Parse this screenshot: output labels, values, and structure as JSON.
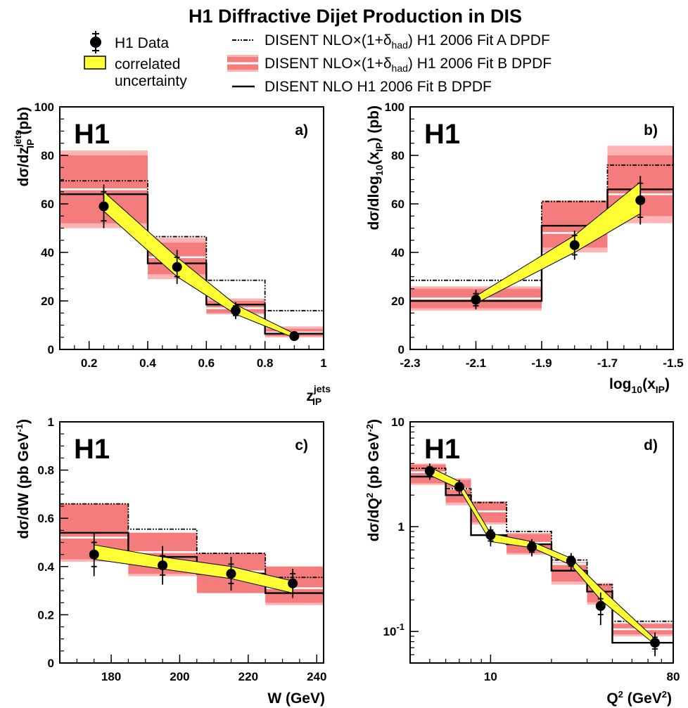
{
  "figure": {
    "title": "H1 Diffractive Dijet Production in DIS",
    "experiment_label": "H1"
  },
  "legend": {
    "data": "H1 Data",
    "correlated_line1": "correlated",
    "correlated_line2": "uncertainty",
    "fitA": "DISENT NLO×(1+δhad) H1 2006 Fit A DPDF",
    "fitB_band": "DISENT NLO×(1+δhad) H1 2006 Fit B DPDF",
    "fitB_line": "DISENT NLO H1 2006 Fit B DPDF"
  },
  "colors": {
    "band_light": "#ffb3b3",
    "band_dark": "#f47c7c",
    "correlated_band": "#ffff33",
    "line": "#000000"
  },
  "chart_data": [
    {
      "id": "a",
      "type": "line",
      "panel_tag": "a)",
      "ylabel": "dσ/dz_IP^jets (pb)",
      "xlabel": "z_IP^jets",
      "xlim": [
        0.1,
        1.0
      ],
      "ylim": [
        0,
        100
      ],
      "xscale": "linear",
      "yscale": "linear",
      "x_ticks": [
        "0.2",
        "0.4",
        "0.6",
        "0.8",
        "1"
      ],
      "y_ticks": [
        "0",
        "20",
        "40",
        "60",
        "80",
        "100"
      ],
      "bins": [
        {
          "lo": 0.1,
          "hi": 0.4,
          "data": 59,
          "stat": 6,
          "tot": 9,
          "fitA": 69.5,
          "fitB_had": 66,
          "band_in_lo": 52,
          "band_in_hi": 80,
          "band_out_lo": 50,
          "band_out_hi": 82,
          "fitB_nlo": 64
        },
        {
          "lo": 0.4,
          "hi": 0.6,
          "data": 34,
          "stat": 4,
          "tot": 7,
          "fitA": 46.5,
          "fitB_had": 38,
          "band_in_lo": 31,
          "band_in_hi": 44,
          "band_out_lo": 29,
          "band_out_hi": 46,
          "fitB_nlo": 35.5
        },
        {
          "lo": 0.6,
          "hi": 0.8,
          "data": 16,
          "stat": 2,
          "tot": 3.5,
          "fitA": 28.5,
          "fitB_had": 17,
          "band_in_lo": 15,
          "band_in_hi": 20,
          "band_out_lo": 14.5,
          "band_out_hi": 21,
          "fitB_nlo": 18.5
        },
        {
          "lo": 0.8,
          "hi": 1.0,
          "data": 5.5,
          "stat": 0.8,
          "tot": 1.2,
          "fitA": 16,
          "fitB_had": 7,
          "band_in_lo": 5.5,
          "band_in_hi": 8.5,
          "band_out_lo": 5,
          "band_out_hi": 9.5,
          "fitB_nlo": 6.5
        }
      ],
      "data_x": [
        0.25,
        0.5,
        0.7,
        0.9
      ],
      "correlated_band": {
        "x": [
          0.25,
          0.5,
          0.7,
          0.9
        ],
        "lo": [
          57,
          30,
          14.5,
          4.8
        ],
        "hi": [
          65,
          38,
          18.5,
          6.5
        ]
      }
    },
    {
      "id": "b",
      "type": "line",
      "panel_tag": "b)",
      "ylabel": "dσ/dlog10(x_IP) (pb)",
      "xlabel": "log10(x_IP)",
      "xlim": [
        -2.3,
        -1.5
      ],
      "ylim": [
        0,
        100
      ],
      "xscale": "linear",
      "yscale": "linear",
      "x_ticks": [
        "-2.3",
        "-2.1",
        "-1.9",
        "-1.7",
        "-1.5"
      ],
      "y_ticks": [
        "0",
        "20",
        "40",
        "60",
        "80",
        "100"
      ],
      "bins": [
        {
          "lo": -2.3,
          "hi": -1.9,
          "data": 20.5,
          "stat": 2.5,
          "tot": 4,
          "fitA": 28.5,
          "fitB_had": 21,
          "band_in_lo": 17,
          "band_in_hi": 25,
          "band_out_lo": 16,
          "band_out_hi": 26,
          "fitB_nlo": 20
        },
        {
          "lo": -1.9,
          "hi": -1.7,
          "data": 43,
          "stat": 4,
          "tot": 6,
          "fitA": 61,
          "fitB_had": 48,
          "band_in_lo": 42,
          "band_in_hi": 61,
          "band_out_lo": 40,
          "band_out_hi": 61.5,
          "fitB_nlo": 51
        },
        {
          "lo": -1.7,
          "hi": -1.5,
          "data": 61.5,
          "stat": 7,
          "tot": 10,
          "fitA": 76,
          "fitB_had": 64,
          "band_in_lo": 55,
          "band_in_hi": 80,
          "band_out_lo": 52,
          "band_out_hi": 84,
          "fitB_nlo": 66
        }
      ],
      "data_x": [
        -2.1,
        -1.8,
        -1.6
      ],
      "correlated_band": {
        "x": [
          -2.1,
          -1.8,
          -1.6
        ],
        "lo": [
          19,
          40,
          56
        ],
        "hi": [
          22,
          47,
          69
        ]
      }
    },
    {
      "id": "c",
      "type": "line",
      "panel_tag": "c)",
      "ylabel": "dσ/dW (pb GeV^-1)",
      "xlabel": "W  (GeV)",
      "xlim": [
        165,
        242
      ],
      "ylim": [
        0,
        1
      ],
      "xscale": "linear",
      "yscale": "linear",
      "x_ticks": [
        "180",
        "200",
        "220",
        "240"
      ],
      "x_tick_values": [
        180,
        200,
        220,
        240
      ],
      "y_ticks": [
        "0",
        "0.2",
        "0.4",
        "0.6",
        "0.8",
        "1"
      ],
      "bins": [
        {
          "lo": 165,
          "hi": 185,
          "data": 0.45,
          "stat": 0.05,
          "tot": 0.09,
          "fitA": 0.66,
          "fitB_had": 0.52,
          "band_in_lo": 0.43,
          "band_in_hi": 0.66,
          "band_out_lo": 0.42,
          "band_out_hi": 0.66,
          "fitB_nlo": 0.54
        },
        {
          "lo": 185,
          "hi": 205,
          "data": 0.405,
          "stat": 0.04,
          "tot": 0.08,
          "fitA": 0.555,
          "fitB_had": 0.46,
          "band_in_lo": 0.37,
          "band_in_hi": 0.54,
          "band_out_lo": 0.36,
          "band_out_hi": 0.54,
          "fitB_nlo": 0.44
        },
        {
          "lo": 205,
          "hi": 225,
          "data": 0.37,
          "stat": 0.04,
          "tot": 0.07,
          "fitA": 0.455,
          "fitB_had": 0.38,
          "band_in_lo": 0.29,
          "band_in_hi": 0.455,
          "band_out_lo": 0.29,
          "band_out_hi": 0.455,
          "fitB_nlo": 0.37
        },
        {
          "lo": 225,
          "hi": 242,
          "data": 0.33,
          "stat": 0.04,
          "tot": 0.06,
          "fitA": 0.355,
          "fitB_had": 0.31,
          "band_in_lo": 0.25,
          "band_in_hi": 0.4,
          "band_out_lo": 0.24,
          "band_out_hi": 0.4,
          "fitB_nlo": 0.29
        }
      ],
      "data_x": [
        175,
        195,
        215,
        233
      ],
      "correlated_band": {
        "x": [
          175,
          195,
          215,
          233
        ],
        "lo": [
          0.43,
          0.39,
          0.35,
          0.29
        ],
        "hi": [
          0.49,
          0.44,
          0.4,
          0.34
        ]
      }
    },
    {
      "id": "d",
      "type": "line",
      "panel_tag": "d)",
      "ylabel": "dσ/dQ² (pb GeV^-2)",
      "xlabel": "Q²  (GeV²)",
      "xlim": [
        4,
        80
      ],
      "ylim": [
        0.05,
        10
      ],
      "xscale": "log",
      "yscale": "log",
      "x_ticks": [
        "10",
        "80"
      ],
      "y_ticks": [
        "10^-1",
        "1",
        "10"
      ],
      "bins": [
        {
          "lo": 4,
          "hi": 6,
          "data": 3.4,
          "stat": 0.3,
          "tot": 0.6,
          "fitA": 3.6,
          "fitB_had": 3.3,
          "band_in_lo": 2.6,
          "band_in_hi": 3.9,
          "band_out_lo": 2.5,
          "band_out_hi": 4.0,
          "fitB_nlo": 3.0
        },
        {
          "lo": 6,
          "hi": 8,
          "data": 2.4,
          "stat": 0.2,
          "tot": 0.4,
          "fitA": 2.3,
          "fitB_had": 2.3,
          "band_in_lo": 1.7,
          "band_in_hi": 2.8,
          "band_out_lo": 1.6,
          "band_out_hi": 2.9,
          "fitB_nlo": 2.0
        },
        {
          "lo": 8,
          "hi": 12,
          "data": 0.83,
          "stat": 0.1,
          "tot": 0.18,
          "fitA": 1.7,
          "fitB_had": 1.4,
          "band_in_lo": 1.1,
          "band_in_hi": 1.7,
          "band_out_lo": 1.05,
          "band_out_hi": 1.75,
          "fitB_nlo": 0.83
        },
        {
          "lo": 12,
          "hi": 20,
          "data": 0.64,
          "stat": 0.07,
          "tot": 0.12,
          "fitA": 0.9,
          "fitB_had": 0.7,
          "band_in_lo": 0.56,
          "band_in_hi": 0.85,
          "band_out_lo": 0.54,
          "band_out_hi": 0.87,
          "fitB_nlo": 0.68
        },
        {
          "lo": 20,
          "hi": 30,
          "data": 0.47,
          "stat": 0.05,
          "tot": 0.09,
          "fitA": 0.48,
          "fitB_had": 0.44,
          "band_in_lo": 0.3,
          "band_in_hi": 0.45,
          "band_out_lo": 0.28,
          "band_out_hi": 0.46,
          "fitB_nlo": 0.38
        },
        {
          "lo": 30,
          "hi": 40,
          "data": 0.175,
          "stat": 0.03,
          "tot": 0.06,
          "fitA": 0.28,
          "fitB_had": 0.24,
          "band_in_lo": 0.19,
          "band_in_hi": 0.28,
          "band_out_lo": 0.18,
          "band_out_hi": 0.29,
          "fitB_nlo": 0.24
        },
        {
          "lo": 40,
          "hi": 80,
          "data": 0.078,
          "stat": 0.01,
          "tot": 0.02,
          "fitA": 0.125,
          "fitB_had": 0.105,
          "band_in_lo": 0.094,
          "band_in_hi": 0.118,
          "band_out_lo": 0.09,
          "band_out_hi": 0.12,
          "fitB_nlo": 0.078
        }
      ],
      "data_x": [
        5,
        7,
        10,
        16,
        25,
        35,
        65
      ],
      "correlated_band": {
        "x": [
          5,
          7,
          10,
          16,
          25,
          35,
          65
        ],
        "lo": [
          3.1,
          2.3,
          0.72,
          0.63,
          0.43,
          0.2,
          0.075
        ],
        "hi": [
          3.7,
          2.7,
          0.86,
          0.72,
          0.5,
          0.26,
          0.085
        ]
      }
    }
  ]
}
